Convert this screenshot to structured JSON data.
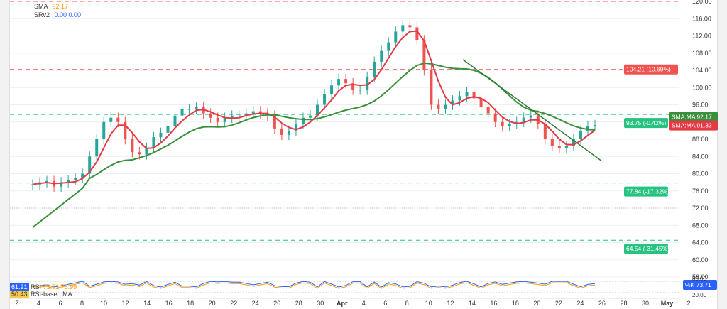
{
  "legend": {
    "sma_label": "SMA",
    "sma_value": "92.17",
    "srv2_label": "SRv2",
    "srv2_values": "0.00  0.00"
  },
  "colors": {
    "bull": "#26a69a",
    "bear": "#ef5350",
    "sma_fast": "#e53946",
    "sma_slow": "#3a8f3a",
    "level_red": "#ef5350",
    "level_green": "#26c281",
    "trend": "#2e7d32",
    "axis_text": "#333333",
    "grid": "#eceff1"
  },
  "price_scale": {
    "ticks": [
      "120.00",
      "116.00",
      "112.00",
      "108.00",
      "104.00",
      "100.00",
      "96.00",
      "92.00",
      "88.00",
      "84.00",
      "80.00",
      "76.00",
      "72.00",
      "68.00",
      "64.00",
      "60.00",
      "56.00"
    ]
  },
  "date_axis": {
    "labels": [
      "Z",
      "4",
      "6",
      "8",
      "10",
      "12",
      "14",
      "16",
      "18",
      "20",
      "22",
      "24",
      "26",
      "28",
      "30",
      "Apr",
      "4",
      "6",
      "8",
      "10",
      "12",
      "14",
      "16",
      "18",
      "20",
      "22",
      "24",
      "26",
      "28",
      "30",
      "May",
      "2"
    ]
  },
  "labels_right": {
    "level_upper": "104.21 (10.69%)",
    "level_current": "93.75 (-0.42%)",
    "level_mid": "77.84 (-17.32%)",
    "level_low": "64.54 (-31.45%)",
    "sma_ma_1_label": "SMA:MA",
    "sma_ma_1_value": "92.17",
    "sma_ma_2_label": "SMA:MA",
    "sma_ma_2_value": "91.33",
    "osc_k_label": "%K",
    "osc_k_value": "73.71"
  },
  "oscillator": {
    "line1": "61.21",
    "line1_name": "RSI",
    "line1_vals": "73.71  76.99",
    "line2": "50.43",
    "line2_name": "RSI-based MA",
    "levels": [
      "80.00",
      "20.00"
    ]
  },
  "chart_data": {
    "type": "line",
    "title": "",
    "ylabel": "",
    "xlabel": "",
    "ylim": [
      56,
      122
    ],
    "grid": true,
    "legend_placement": "top-left",
    "series": [
      {
        "name": "SMA",
        "values": [
          77.5,
          78.0,
          78.3,
          77.0,
          78.0,
          78.5,
          79.0,
          80.0,
          84.0,
          88.0,
          92.0,
          93.0,
          92.0,
          88.0,
          85.0,
          84.5,
          86.0,
          88.5,
          89.5,
          91.0,
          93.5,
          95.0,
          95.0,
          95.5,
          94.0,
          93.0,
          92.0,
          93.0,
          93.5,
          93.5,
          94.0,
          94.5,
          94.0,
          93.5,
          90.5,
          89.0,
          90.0,
          91.5,
          93.0,
          93.5,
          96.0,
          98.5,
          100.5,
          102.0,
          101.0,
          99.5,
          99.5,
          102.5,
          106.0,
          108.5,
          110.5,
          113.0,
          114.5,
          114.0,
          111.0,
          104.0,
          96.0,
          95.0,
          96.0,
          97.0,
          98.0,
          99.0,
          97.5,
          95.5,
          94.0,
          92.0,
          91.0,
          91.5,
          92.0,
          93.0,
          93.5,
          91.5,
          88.0,
          86.5,
          86.0,
          86.5,
          88.0,
          90.0,
          91.0,
          91.3
        ]
      }
    ],
    "levels": [
      120.0,
      104.21,
      93.75,
      77.84,
      64.54
    ]
  }
}
